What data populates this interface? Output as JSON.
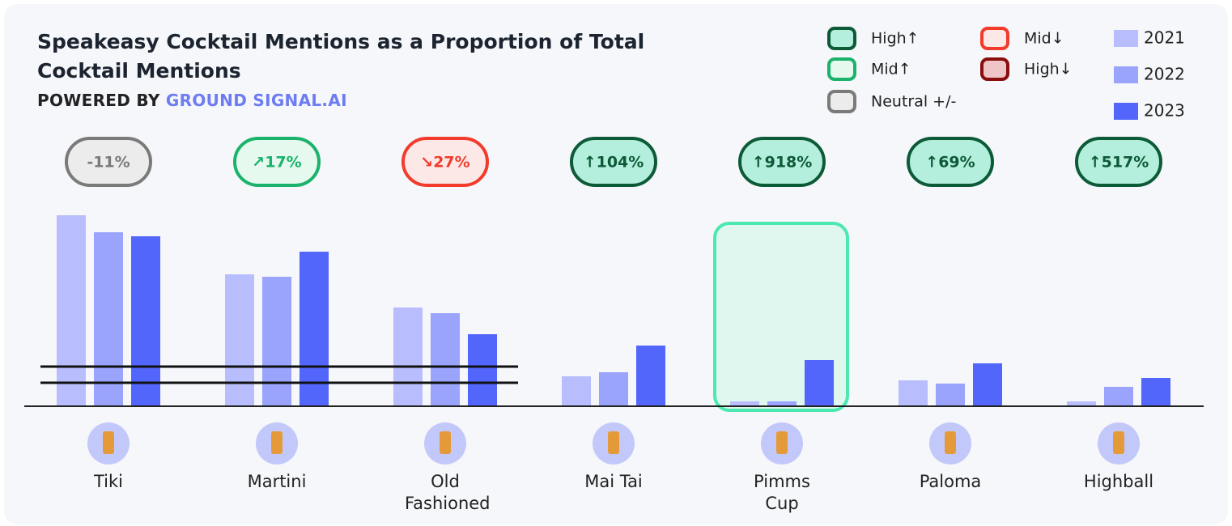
{
  "chart_data": {
    "type": "bar",
    "title": "Speakeasy Cocktail Mentions as a Proportion of Total Cocktail Mentions",
    "subtitle": "POWERED BY",
    "brand": "GROUND SIGNAL.AI",
    "categories": [
      "Tiki",
      "Martini",
      "Old Fashioned",
      "Mai Tai",
      "Pimms Cup",
      "Paloma",
      "Highball"
    ],
    "series": [
      {
        "name": "2021",
        "color": "#b8befd",
        "values": [
          236,
          163,
          122,
          37,
          6,
          32,
          6
        ]
      },
      {
        "name": "2022",
        "color": "#9ba4fc",
        "values": [
          215,
          160,
          115,
          42,
          6,
          28,
          24
        ]
      },
      {
        "name": "2023",
        "color": "#5266fb",
        "values": [
          210,
          191,
          89,
          75,
          57,
          53,
          35
        ]
      }
    ],
    "ylim": [
      0,
      250
    ],
    "change_labels": [
      "-11%",
      "↗17%",
      "↘27%",
      "↑104%",
      "↑918%",
      "↑69%",
      "↑517%"
    ],
    "change_level": [
      2,
      1,
      3,
      0,
      0,
      0,
      0
    ],
    "change_legend": [
      {
        "name": "High↑",
        "stroke": "#0d5a38",
        "fill": "#b4efdd"
      },
      {
        "name": "Mid↑",
        "stroke": "#1bb36b",
        "fill": "#e6f9ef"
      },
      {
        "name": "Neutral +/-",
        "stroke": "#7a7a7a",
        "fill": "#ececec"
      },
      {
        "name": "Mid↓",
        "stroke": "#f33b2b",
        "fill": "#fde8e8"
      },
      {
        "name": "High↓",
        "stroke": "#8b0e0e",
        "fill": "#efc6c8"
      }
    ],
    "highlight": "Pimms Cup",
    "highlight_color": "#4be8b0"
  }
}
